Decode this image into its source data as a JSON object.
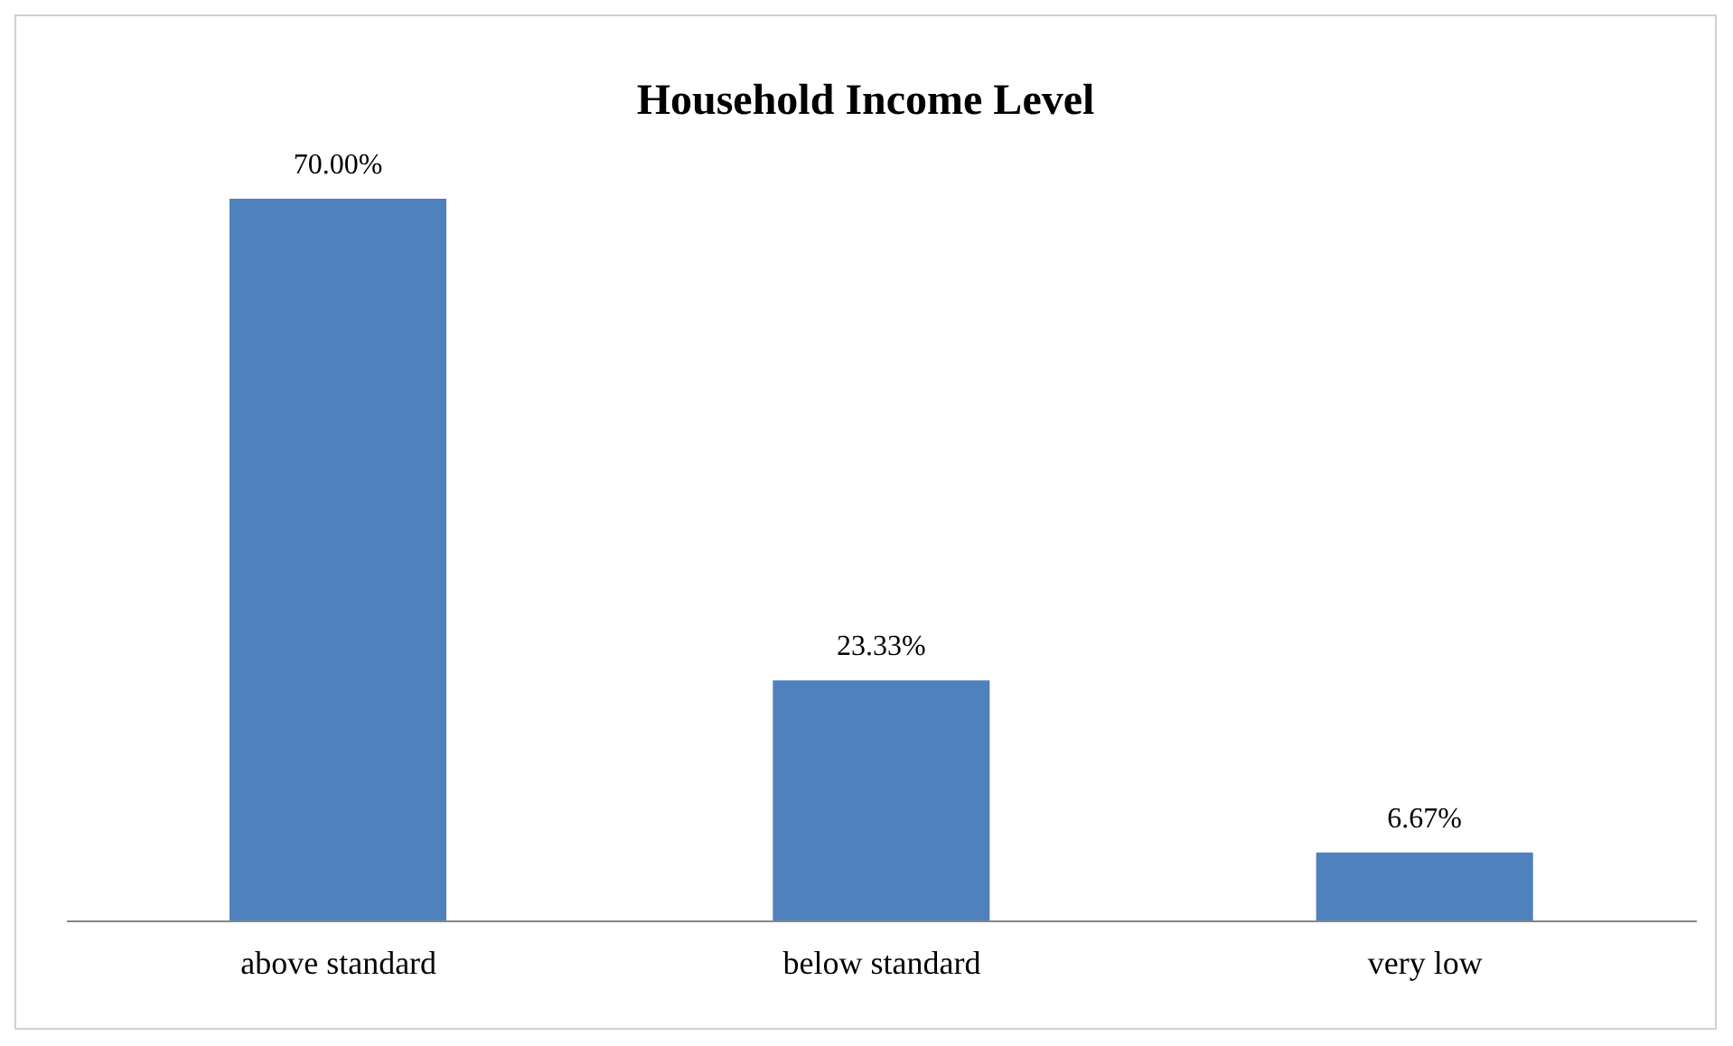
{
  "chart_data": {
    "type": "bar",
    "title": "Household Income Level",
    "categories": [
      "above standard",
      "below standard",
      "very low"
    ],
    "values": [
      70,
      23.33,
      6.67
    ],
    "value_labels": [
      "70.00%",
      "23.33%",
      "6.67%"
    ],
    "color": "#4f81bd"
  }
}
